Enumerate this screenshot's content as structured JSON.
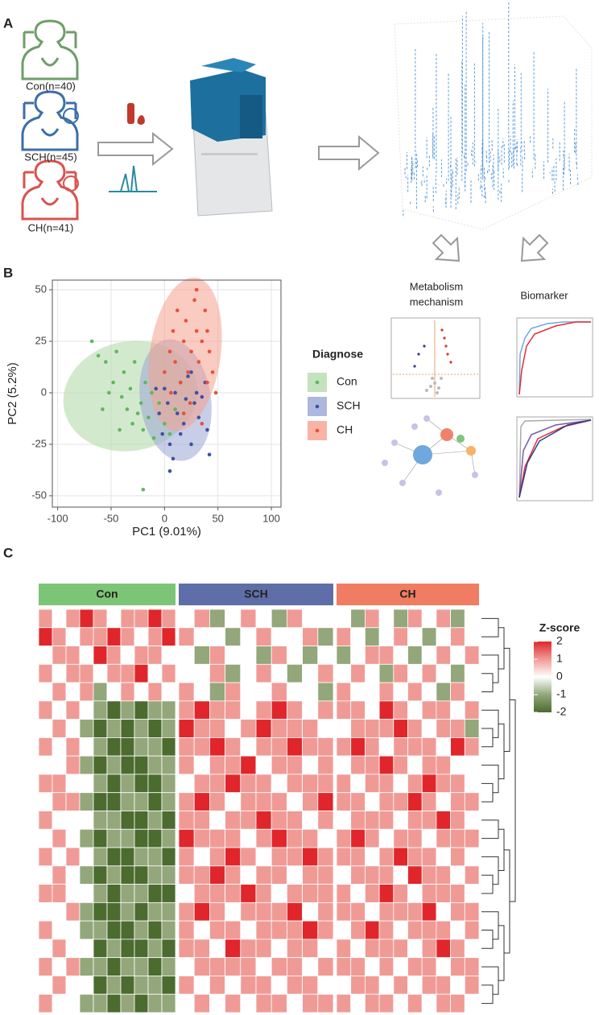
{
  "panel_a": {
    "label": "A",
    "groups": [
      "Con(n=40)",
      "SCH(n=45)",
      "CH(n=41)"
    ]
  },
  "panel_b": {
    "label": "B",
    "metabolism_title": [
      "Metabolism",
      "mechanism"
    ],
    "biomarker_title": "Biomarker",
    "chart_data": {
      "type": "scatter",
      "xlabel": "PC1 (9.01%)",
      "ylabel": "PC2 (5.2%)",
      "xlim": [
        -105,
        109
      ],
      "ylim": [
        -55.5,
        54.7
      ],
      "xticks": [
        -100,
        -50,
        0,
        50,
        100
      ],
      "yticks": [
        -50,
        -25,
        0,
        25,
        50
      ],
      "grid": true,
      "legend_title": "Diagnose",
      "series": [
        {
          "name": "Con",
          "color": "#5cb85c",
          "x": [
            -68,
            -62,
            -55,
            -48,
            -45,
            -40,
            -38,
            -35,
            -32,
            -30,
            -28,
            -25,
            -22,
            -20,
            -18,
            -15,
            -12,
            -10,
            -5,
            0,
            5,
            10,
            -42,
            -58,
            -20,
            -52
          ],
          "y": [
            25,
            18,
            15,
            5,
            20,
            -2,
            10,
            -8,
            2,
            -15,
            15,
            -10,
            -5,
            -18,
            5,
            -12,
            0,
            -22,
            -5,
            -15,
            -20,
            -8,
            -18,
            -8,
            -47,
            0
          ]
        },
        {
          "name": "SCH",
          "color": "#3f51a3",
          "x": [
            -5,
            -2,
            0,
            3,
            5,
            8,
            10,
            12,
            15,
            18,
            20,
            22,
            25,
            28,
            30,
            32,
            35,
            38,
            40,
            42,
            5,
            15,
            25,
            -8
          ],
          "y": [
            -10,
            -20,
            2,
            -5,
            -25,
            -32,
            0,
            -10,
            5,
            -15,
            -3,
            8,
            -25,
            -5,
            0,
            -12,
            -2,
            5,
            -18,
            -30,
            -38,
            -20,
            10,
            2
          ]
        },
        {
          "name": "CH",
          "color": "#e8503a",
          "x": [
            0,
            5,
            8,
            10,
            12,
            15,
            18,
            20,
            22,
            25,
            28,
            30,
            32,
            35,
            38,
            40,
            42,
            45,
            48,
            30,
            24,
            18,
            35,
            40,
            6
          ],
          "y": [
            10,
            20,
            30,
            15,
            40,
            5,
            25,
            35,
            10,
            20,
            45,
            30,
            15,
            25,
            40,
            5,
            20,
            10,
            0,
            50,
            -5,
            -10,
            -15,
            30,
            0
          ]
        }
      ]
    }
  },
  "panel_c": {
    "label": "C",
    "chart_data": {
      "type": "heatmap",
      "groups": [
        {
          "name": "Con",
          "color": "#7cc576"
        },
        {
          "name": "SCH",
          "color": "#5e6fa8"
        },
        {
          "name": "CH",
          "color": "#f07c62"
        }
      ],
      "legend_title": "Z-score",
      "zlim": [
        -2,
        2
      ],
      "zticks": [
        2,
        1,
        0,
        -1,
        -2
      ],
      "rows": [
        [
          1,
          0,
          1,
          2,
          1,
          0,
          1,
          1,
          2,
          1,
          0,
          1,
          -1,
          0,
          1,
          0,
          -1,
          1,
          0,
          0,
          0,
          -1,
          1,
          0,
          -1,
          1,
          0,
          1,
          -1,
          0
        ],
        [
          2,
          1,
          0,
          1,
          1,
          2,
          1,
          0,
          1,
          2,
          1,
          0,
          0,
          -1,
          0,
          1,
          0,
          0,
          1,
          -1,
          1,
          0,
          -1,
          0,
          1,
          0,
          -1,
          0,
          1,
          0
        ],
        [
          0,
          1,
          1,
          0,
          2,
          1,
          0,
          1,
          1,
          0,
          0,
          -1,
          1,
          0,
          0,
          -1,
          1,
          0,
          -1,
          0,
          -1,
          0,
          1,
          1,
          0,
          -1,
          0,
          1,
          0,
          1
        ],
        [
          1,
          0,
          1,
          1,
          0,
          1,
          1,
          2,
          0,
          1,
          0,
          0,
          1,
          -1,
          0,
          1,
          0,
          -1,
          0,
          1,
          0,
          1,
          0,
          -1,
          1,
          0,
          1,
          0,
          -1,
          0
        ],
        [
          0,
          1,
          0,
          1,
          -1,
          0,
          1,
          0,
          1,
          0,
          1,
          0,
          -1,
          1,
          0,
          0,
          1,
          0,
          0,
          -1,
          1,
          0,
          0,
          1,
          0,
          1,
          0,
          -1,
          1,
          0
        ],
        [
          1,
          0,
          1,
          0,
          -1,
          -2,
          -1,
          -2,
          -1,
          -1,
          1,
          2,
          1,
          1,
          0,
          1,
          2,
          1,
          0,
          1,
          1,
          1,
          0,
          2,
          1,
          0,
          1,
          1,
          0,
          1
        ],
        [
          0,
          1,
          0,
          -1,
          -2,
          -1,
          -2,
          -1,
          -2,
          -1,
          2,
          1,
          1,
          0,
          1,
          2,
          1,
          1,
          1,
          0,
          0,
          1,
          1,
          1,
          2,
          1,
          0,
          1,
          1,
          -1
        ],
        [
          1,
          0,
          1,
          0,
          -1,
          -2,
          -2,
          -1,
          -1,
          -2,
          1,
          1,
          2,
          1,
          0,
          1,
          1,
          2,
          1,
          1,
          1,
          2,
          1,
          0,
          1,
          1,
          1,
          0,
          2,
          1
        ],
        [
          0,
          0,
          1,
          -1,
          -2,
          -1,
          -2,
          -2,
          -1,
          -1,
          1,
          0,
          1,
          1,
          2,
          0,
          1,
          1,
          0,
          1,
          0,
          1,
          1,
          2,
          1,
          0,
          1,
          1,
          0,
          0
        ],
        [
          1,
          1,
          0,
          0,
          -1,
          -2,
          -1,
          -2,
          -2,
          -1,
          0,
          1,
          1,
          2,
          1,
          1,
          0,
          1,
          1,
          1,
          1,
          0,
          1,
          1,
          0,
          1,
          2,
          1,
          1,
          0
        ],
        [
          0,
          1,
          1,
          -1,
          -2,
          -2,
          -1,
          -1,
          -2,
          -1,
          1,
          2,
          1,
          0,
          1,
          1,
          1,
          0,
          1,
          2,
          1,
          1,
          0,
          1,
          1,
          2,
          1,
          0,
          1,
          1
        ],
        [
          1,
          0,
          0,
          0,
          -1,
          -1,
          -2,
          -2,
          -1,
          -2,
          1,
          1,
          0,
          1,
          1,
          2,
          1,
          1,
          0,
          1,
          0,
          1,
          1,
          1,
          0,
          1,
          1,
          2,
          1,
          0
        ],
        [
          0,
          1,
          0,
          -1,
          -2,
          -1,
          -1,
          -2,
          -2,
          -1,
          2,
          1,
          1,
          1,
          0,
          1,
          2,
          1,
          1,
          0,
          1,
          2,
          1,
          0,
          1,
          1,
          0,
          1,
          1,
          1
        ],
        [
          1,
          0,
          1,
          0,
          -1,
          -2,
          -2,
          -1,
          -1,
          -2,
          1,
          0,
          1,
          2,
          1,
          0,
          1,
          1,
          2,
          1,
          1,
          1,
          0,
          1,
          2,
          1,
          1,
          0,
          1,
          0
        ],
        [
          0,
          1,
          0,
          -1,
          -2,
          -1,
          -2,
          -2,
          -1,
          -1,
          1,
          1,
          2,
          1,
          0,
          1,
          1,
          0,
          1,
          1,
          0,
          1,
          1,
          1,
          0,
          2,
          1,
          1,
          0,
          1
        ],
        [
          1,
          1,
          0,
          0,
          -1,
          -2,
          -1,
          -1,
          -2,
          -2,
          0,
          1,
          1,
          1,
          2,
          1,
          0,
          1,
          1,
          1,
          1,
          0,
          1,
          2,
          1,
          0,
          1,
          1,
          1,
          0
        ],
        [
          0,
          0,
          1,
          -1,
          -2,
          -2,
          -1,
          -2,
          -1,
          -1,
          1,
          2,
          1,
          0,
          1,
          1,
          1,
          2,
          0,
          1,
          1,
          1,
          0,
          1,
          1,
          1,
          2,
          0,
          1,
          1
        ],
        [
          1,
          0,
          0,
          -1,
          -1,
          -2,
          -2,
          -1,
          -2,
          -1,
          1,
          0,
          1,
          1,
          0,
          1,
          1,
          1,
          2,
          1,
          0,
          1,
          2,
          1,
          0,
          1,
          1,
          1,
          0,
          1
        ],
        [
          0,
          1,
          0,
          0,
          -2,
          -1,
          -2,
          -2,
          -1,
          -2,
          1,
          1,
          0,
          2,
          1,
          1,
          0,
          1,
          1,
          0,
          1,
          0,
          1,
          1,
          1,
          0,
          1,
          2,
          1,
          0
        ],
        [
          1,
          0,
          1,
          -1,
          -1,
          -2,
          -1,
          -1,
          -2,
          -1,
          0,
          1,
          1,
          1,
          1,
          0,
          1,
          1,
          0,
          1,
          1,
          1,
          0,
          1,
          0,
          1,
          1,
          0,
          1,
          1
        ],
        [
          0,
          1,
          0,
          0,
          -2,
          -1,
          -2,
          -1,
          -1,
          -2,
          1,
          0,
          1,
          0,
          1,
          1,
          0,
          1,
          1,
          0,
          0,
          1,
          1,
          0,
          1,
          0,
          1,
          1,
          0,
          1
        ],
        [
          1,
          0,
          0,
          -1,
          -1,
          -2,
          -1,
          -2,
          -1,
          -1,
          0,
          1,
          0,
          1,
          0,
          1,
          1,
          0,
          1,
          1,
          1,
          0,
          1,
          1,
          0,
          1,
          0,
          1,
          1,
          0
        ]
      ]
    }
  }
}
